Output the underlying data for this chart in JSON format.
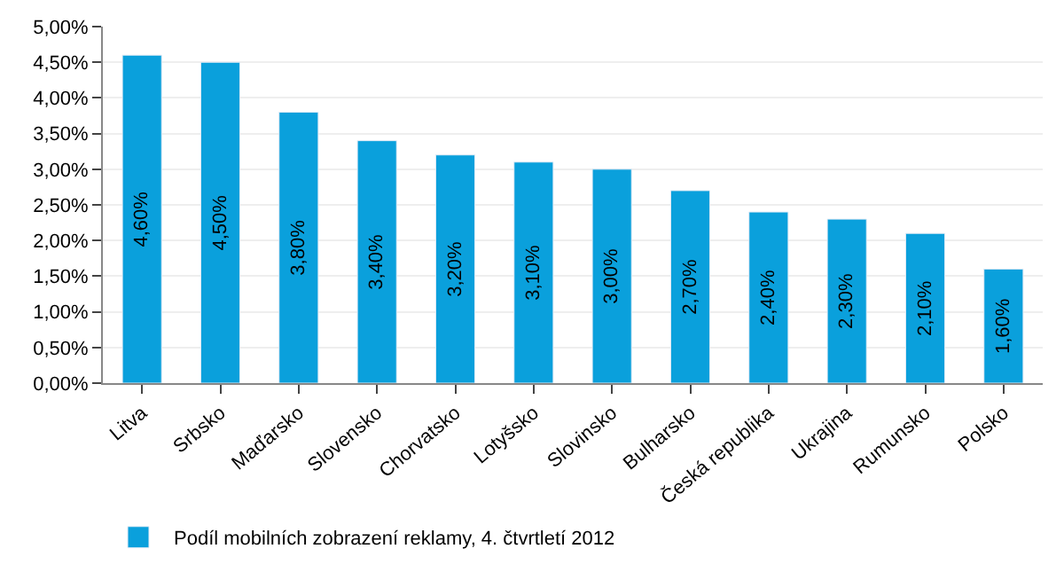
{
  "chart_data": {
    "type": "bar",
    "categories": [
      "Litva",
      "Srbsko",
      "Maďarsko",
      "Slovensko",
      "Chorvatsko",
      "Lotyšsko",
      "Slovinsko",
      "Bulharsko",
      "Česká republika",
      "Ukrajina",
      "Rumunsko",
      "Polsko"
    ],
    "series": [
      {
        "name": "Podíl mobilních zobrazení reklamy, 4. čtvrtletí 2012",
        "color": "#0aa0dc",
        "values": [
          4.6,
          4.5,
          3.8,
          3.4,
          3.2,
          3.1,
          3.0,
          2.7,
          2.4,
          2.3,
          2.1,
          1.6
        ],
        "value_labels": [
          "4,60%",
          "4,50%",
          "3,80%",
          "3,40%",
          "3,20%",
          "3,10%",
          "3,00%",
          "2,70%",
          "2,40%",
          "2,30%",
          "2,10%",
          "1,60%"
        ]
      }
    ],
    "ylim": [
      0,
      5
    ],
    "yticks": [
      {
        "value": 0,
        "label": "0,00%"
      },
      {
        "value": 0.5,
        "label": "0,50%"
      },
      {
        "value": 1,
        "label": "1,00%"
      },
      {
        "value": 1.5,
        "label": "1,50%"
      },
      {
        "value": 2,
        "label": "2,00%"
      },
      {
        "value": 2.5,
        "label": "2,50%"
      },
      {
        "value": 3,
        "label": "3,00%"
      },
      {
        "value": 3.5,
        "label": "3,50%"
      },
      {
        "value": 4,
        "label": "4,00%"
      },
      {
        "value": 4.5,
        "label": "4,50%"
      },
      {
        "value": 5,
        "label": "5,00%"
      }
    ],
    "grid": "y",
    "legend": "bottom left"
  }
}
